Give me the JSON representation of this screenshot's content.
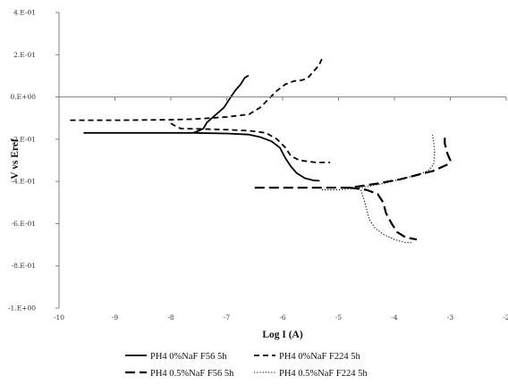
{
  "chart_data": {
    "type": "line",
    "title": "",
    "xlabel": "Log I (A)",
    "ylabel": "V vs Eref",
    "xlim": [
      -10,
      -2
    ],
    "ylim": [
      -1.0,
      0.4
    ],
    "x_ticks": [
      -10,
      -9,
      -8,
      -7,
      -6,
      -5,
      -4,
      -3,
      -2
    ],
    "x_tick_labels": [
      "-10",
      "-9",
      "-8",
      "-7",
      "-6",
      "-5",
      "-4",
      "-3",
      "-2"
    ],
    "y_ticks": [
      0.4,
      0.2,
      0.0,
      -0.2,
      -0.4,
      -0.6,
      -0.8,
      -1.0
    ],
    "y_tick_labels": [
      "4.E-01",
      "2.E-01",
      "0.E+00",
      "-2.E-01",
      "-4.E-01",
      "-6.E-01",
      "-8.E-01",
      "-1.E+00"
    ],
    "grid": false,
    "legend_position": "bottom",
    "series": [
      {
        "name": "PH4 0%NaF F56 5h",
        "style": "solid",
        "color": "#000000",
        "points": [
          [
            -9.55,
            -0.17
          ],
          [
            -8.5,
            -0.17
          ],
          [
            -7.6,
            -0.17
          ],
          [
            -7.5,
            -0.16
          ],
          [
            -7.42,
            -0.15
          ],
          [
            -7.35,
            -0.12
          ],
          [
            -7.2,
            -0.085
          ],
          [
            -7.05,
            -0.05
          ],
          [
            -6.95,
            -0.01
          ],
          [
            -6.85,
            0.03
          ],
          [
            -6.75,
            0.06
          ],
          [
            -6.68,
            0.09
          ],
          [
            -6.62,
            0.1
          ],
          null,
          [
            -7.6,
            -0.17
          ],
          [
            -7.0,
            -0.173
          ],
          [
            -6.6,
            -0.178
          ],
          [
            -6.4,
            -0.19
          ],
          [
            -6.2,
            -0.21
          ],
          [
            -6.05,
            -0.24
          ],
          [
            -5.95,
            -0.29
          ],
          [
            -5.85,
            -0.33
          ],
          [
            -5.75,
            -0.36
          ],
          [
            -5.6,
            -0.385
          ],
          [
            -5.45,
            -0.395
          ],
          [
            -5.35,
            -0.397
          ]
        ]
      },
      {
        "name": "PH4 0%NaF F224 5h",
        "style": "dashed",
        "color": "#000000",
        "points": [
          [
            -9.8,
            -0.11
          ],
          [
            -8.9,
            -0.11
          ],
          [
            -8.0,
            -0.108
          ],
          [
            -7.6,
            -0.105
          ],
          [
            -7.0,
            -0.095
          ],
          [
            -6.6,
            -0.082
          ],
          [
            -6.4,
            -0.05
          ],
          [
            -6.25,
            -0.01
          ],
          [
            -6.1,
            0.03
          ],
          [
            -5.95,
            0.06
          ],
          [
            -5.8,
            0.075
          ],
          [
            -5.65,
            0.08
          ],
          [
            -5.55,
            0.09
          ],
          [
            -5.45,
            0.12
          ],
          [
            -5.35,
            0.15
          ],
          [
            -5.28,
            0.19
          ],
          null,
          [
            -8.0,
            -0.125
          ],
          [
            -7.9,
            -0.14
          ],
          [
            -7.82,
            -0.15
          ],
          [
            -7.4,
            -0.152
          ],
          [
            -7.0,
            -0.155
          ],
          [
            -6.6,
            -0.16
          ],
          [
            -6.3,
            -0.17
          ],
          [
            -6.1,
            -0.2
          ],
          [
            -5.95,
            -0.24
          ],
          [
            -5.85,
            -0.28
          ],
          [
            -5.7,
            -0.3
          ],
          [
            -5.4,
            -0.31
          ],
          [
            -5.15,
            -0.31
          ]
        ]
      },
      {
        "name": "PH4 0.5%NaF F56 5h",
        "style": "long-dash",
        "color": "#000000",
        "points": [
          [
            -6.5,
            -0.43
          ],
          [
            -5.5,
            -0.43
          ],
          [
            -4.8,
            -0.43
          ],
          [
            -4.3,
            -0.41
          ],
          [
            -3.9,
            -0.39
          ],
          [
            -3.6,
            -0.37
          ],
          [
            -3.3,
            -0.35
          ],
          [
            -3.05,
            -0.32
          ],
          [
            -3.0,
            -0.3
          ],
          [
            -3.05,
            -0.27
          ],
          [
            -3.1,
            -0.22
          ],
          [
            -3.1,
            -0.18
          ],
          null,
          [
            -4.8,
            -0.43
          ],
          [
            -4.5,
            -0.44
          ],
          [
            -4.3,
            -0.46
          ],
          [
            -4.2,
            -0.5
          ],
          [
            -4.15,
            -0.55
          ],
          [
            -4.05,
            -0.6
          ],
          [
            -3.95,
            -0.64
          ],
          [
            -3.8,
            -0.665
          ],
          [
            -3.6,
            -0.675
          ]
        ]
      },
      {
        "name": "PH4 0.5%NaF F224 5h",
        "style": "dotted",
        "color": "#000000",
        "points": [
          [
            -5.3,
            -0.44
          ],
          [
            -5.0,
            -0.44
          ],
          [
            -4.6,
            -0.43
          ],
          [
            -4.2,
            -0.41
          ],
          [
            -3.9,
            -0.39
          ],
          [
            -3.6,
            -0.37
          ],
          [
            -3.4,
            -0.35
          ],
          [
            -3.3,
            -0.32
          ],
          [
            -3.28,
            -0.26
          ],
          [
            -3.3,
            -0.21
          ],
          [
            -3.32,
            -0.18
          ],
          null,
          [
            -4.6,
            -0.44
          ],
          [
            -4.55,
            -0.48
          ],
          [
            -4.5,
            -0.53
          ],
          [
            -4.45,
            -0.58
          ],
          [
            -4.35,
            -0.62
          ],
          [
            -4.2,
            -0.65
          ],
          [
            -4.0,
            -0.675
          ],
          [
            -3.8,
            -0.69
          ],
          [
            -3.7,
            -0.69
          ]
        ]
      }
    ]
  }
}
